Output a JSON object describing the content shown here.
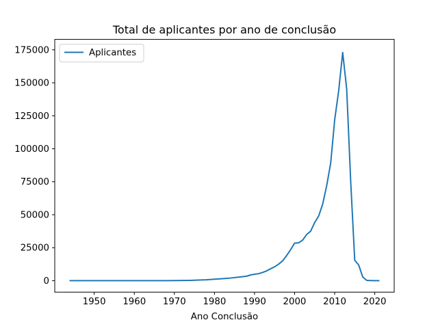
{
  "chart_data": {
    "type": "line",
    "title": "Total de aplicantes por ano de conclusão",
    "xlabel": "Ano Conclusão",
    "ylabel": "",
    "xlim": [
      1940.15,
      2024.85
    ],
    "ylim": [
      -8700,
      182900
    ],
    "xticks": [
      1950,
      1960,
      1970,
      1980,
      1990,
      2000,
      2010,
      2020
    ],
    "yticks": [
      0,
      25000,
      50000,
      75000,
      100000,
      125000,
      150000,
      175000
    ],
    "grid": false,
    "legend_position": "upper-left",
    "series": [
      {
        "name": "Aplicantes",
        "color": "#1f77b4",
        "x": [
          1944,
          1950,
          1955,
          1960,
          1965,
          1968,
          1970,
          1972,
          1974,
          1976,
          1978,
          1980,
          1982,
          1984,
          1986,
          1988,
          1989,
          1990,
          1991,
          1992,
          1993,
          1994,
          1995,
          1996,
          1997,
          1998,
          1999,
          2000,
          2001,
          2002,
          2003,
          2004,
          2005,
          2006,
          2007,
          2008,
          2009,
          2010,
          2011,
          2012,
          2013,
          2014,
          2015,
          2016,
          2017,
          2018,
          2019,
          2020,
          2021
        ],
        "y": [
          0,
          0,
          0,
          0,
          0,
          50,
          100,
          150,
          250,
          450,
          700,
          1100,
          1500,
          2000,
          2700,
          3400,
          4300,
          4900,
          5300,
          6200,
          7400,
          9000,
          10500,
          12500,
          15000,
          19000,
          23500,
          28500,
          28700,
          30700,
          35000,
          37500,
          44000,
          49000,
          58000,
          72000,
          89000,
          122000,
          144000,
          173000,
          145000,
          75000,
          15500,
          11800,
          2800,
          200,
          100,
          50,
          50
        ]
      }
    ]
  }
}
